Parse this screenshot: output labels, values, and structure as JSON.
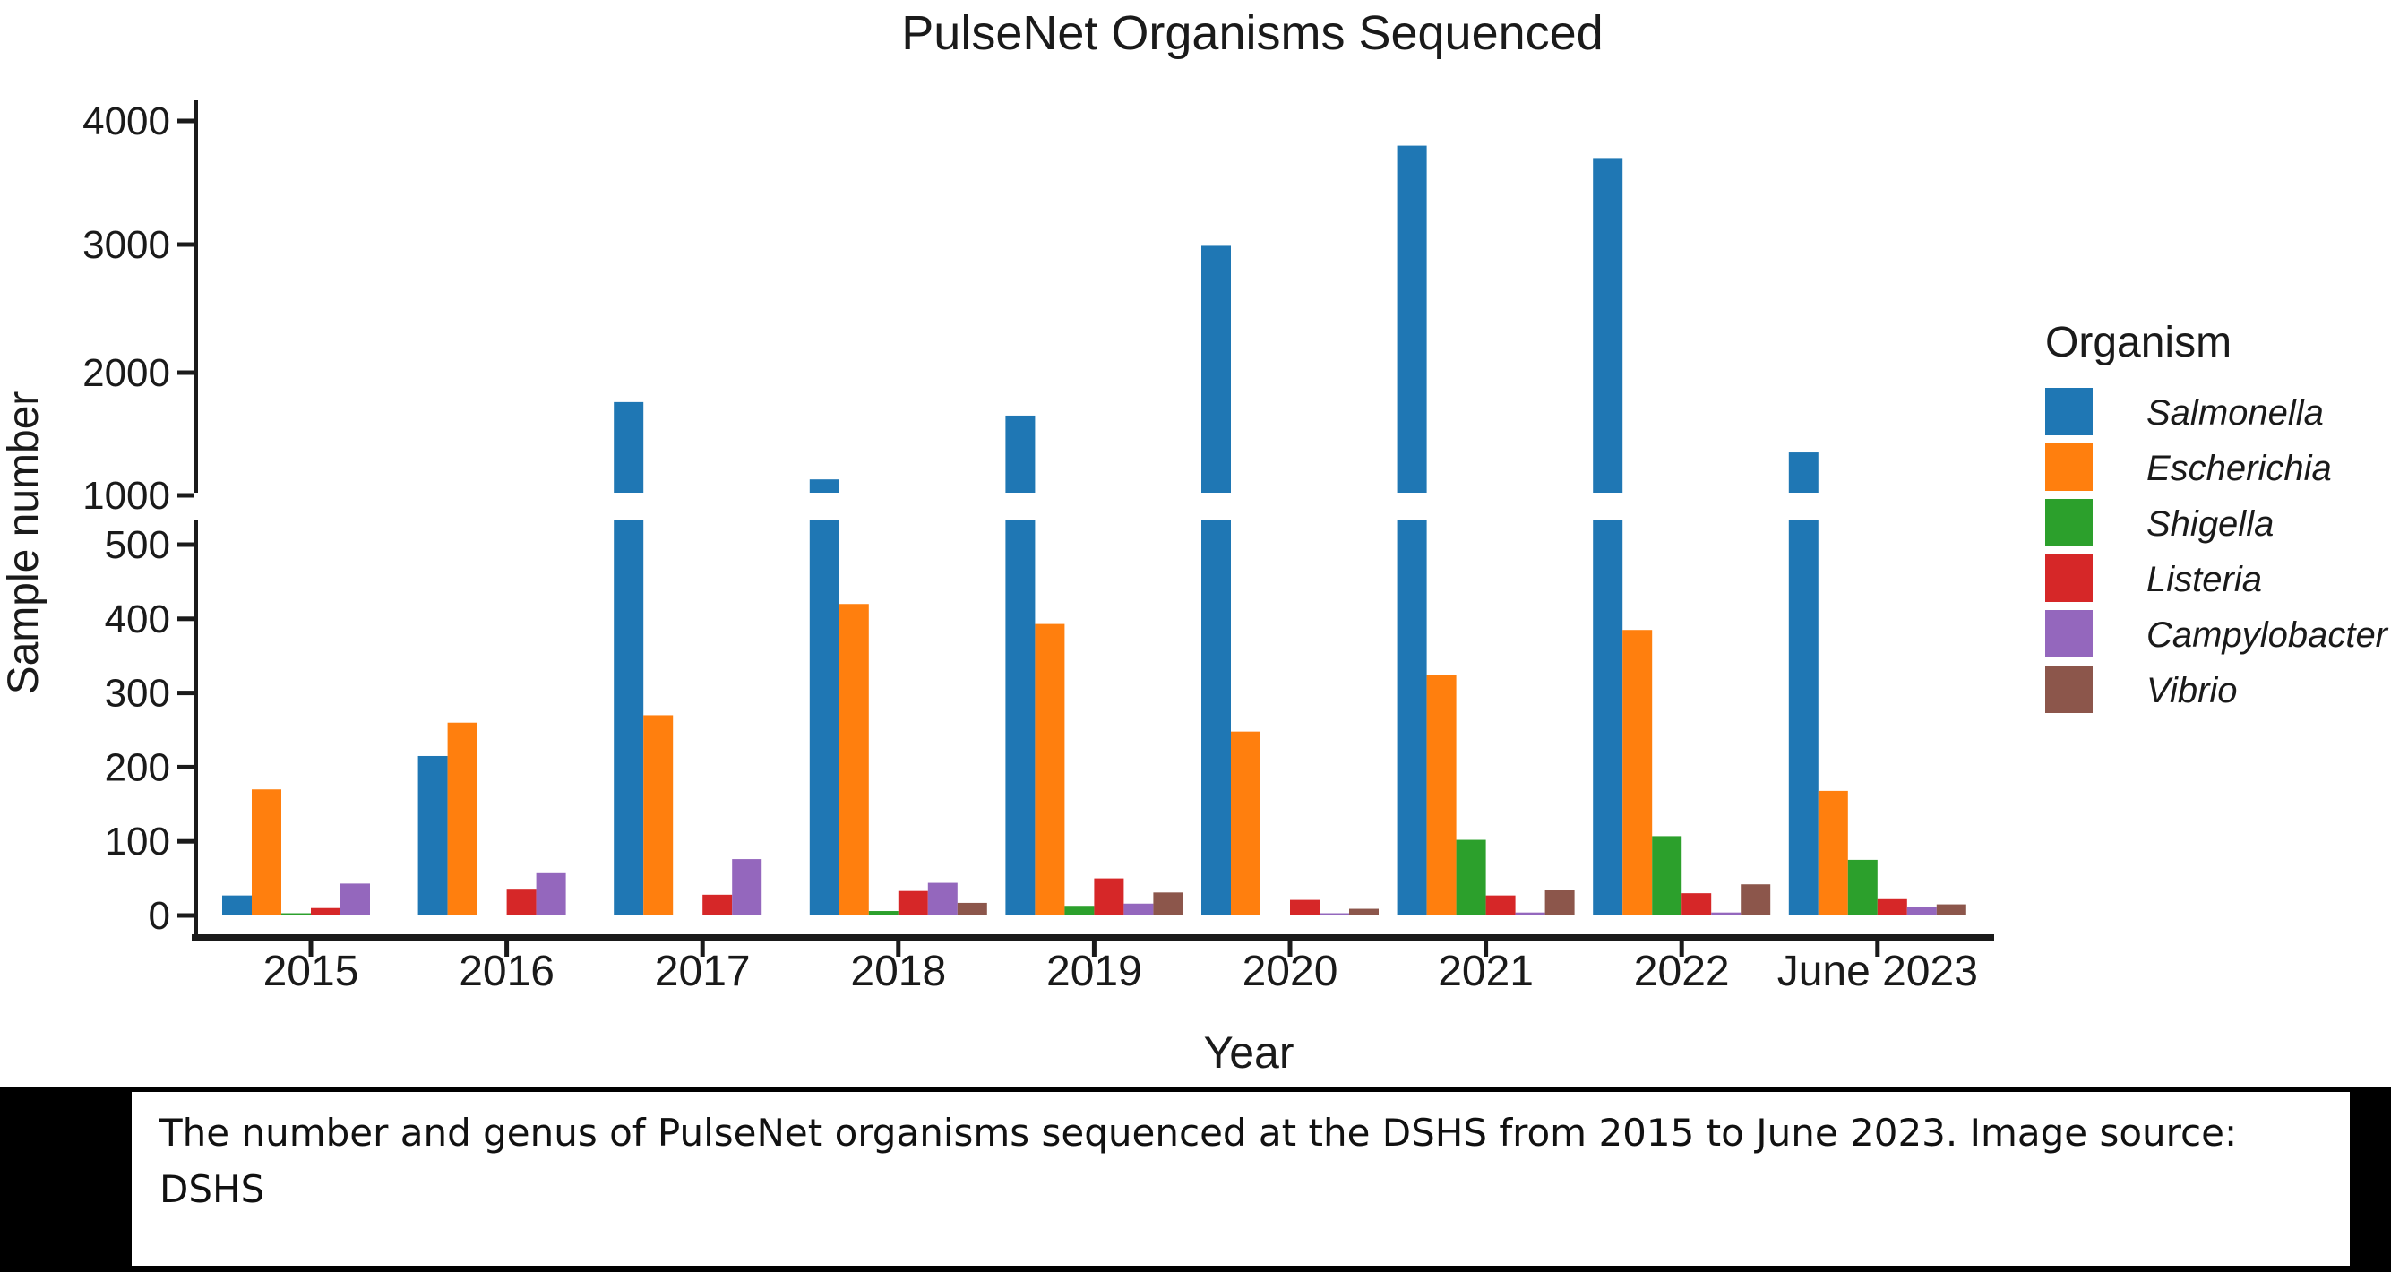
{
  "title": "PulseNet Organisms Sequenced",
  "caption": "The number and genus of PulseNet organisms sequenced at the DSHS from 2015 to June 2023. Image source: DSHS",
  "chart_data": {
    "type": "bar",
    "title": "PulseNet Organisms Sequenced",
    "xlabel": "Year",
    "ylabel": "Sample number",
    "legend_title": "Organism",
    "legend_position": "right",
    "grid": "off",
    "axis_break": {
      "between": [
        500,
        1000
      ],
      "note": "y axis compressed above 500; white break band drawn through bars taller than the break"
    },
    "y_ticks": [
      0,
      100,
      200,
      300,
      400,
      500,
      1000,
      2000,
      3000,
      4000
    ],
    "ylim": [
      0,
      4000
    ],
    "categories": [
      "2015",
      "2016",
      "2017",
      "2018",
      "2019",
      "2020",
      "2021",
      "2022",
      "June 2023"
    ],
    "series": [
      {
        "name": "Salmonella",
        "color": "#1f77b4",
        "values": [
          27,
          215,
          1760,
          1130,
          1650,
          2990,
          3800,
          3700,
          1350
        ]
      },
      {
        "name": "Escherichia",
        "color": "#ff7f0e",
        "values": [
          170,
          260,
          270,
          420,
          393,
          248,
          324,
          385,
          168
        ]
      },
      {
        "name": "Shigella",
        "color": "#2ca02c",
        "values": [
          3,
          0,
          0,
          6,
          13,
          0,
          102,
          107,
          75
        ]
      },
      {
        "name": "Listeria",
        "color": "#d62728",
        "values": [
          10,
          36,
          28,
          33,
          50,
          21,
          27,
          30,
          22
        ]
      },
      {
        "name": "Campylobacter",
        "color": "#9467bd",
        "values": [
          43,
          57,
          76,
          44,
          16,
          3,
          4,
          4,
          12
        ]
      },
      {
        "name": "Vibrio",
        "color": "#8c564b",
        "values": [
          0,
          0,
          0,
          17,
          31,
          9,
          34,
          42,
          15
        ]
      }
    ]
  },
  "colors": {
    "axis": "#1a1a1a",
    "text": "#1a1a1a",
    "caption_band": "#000000",
    "caption_box": "#ffffff"
  }
}
